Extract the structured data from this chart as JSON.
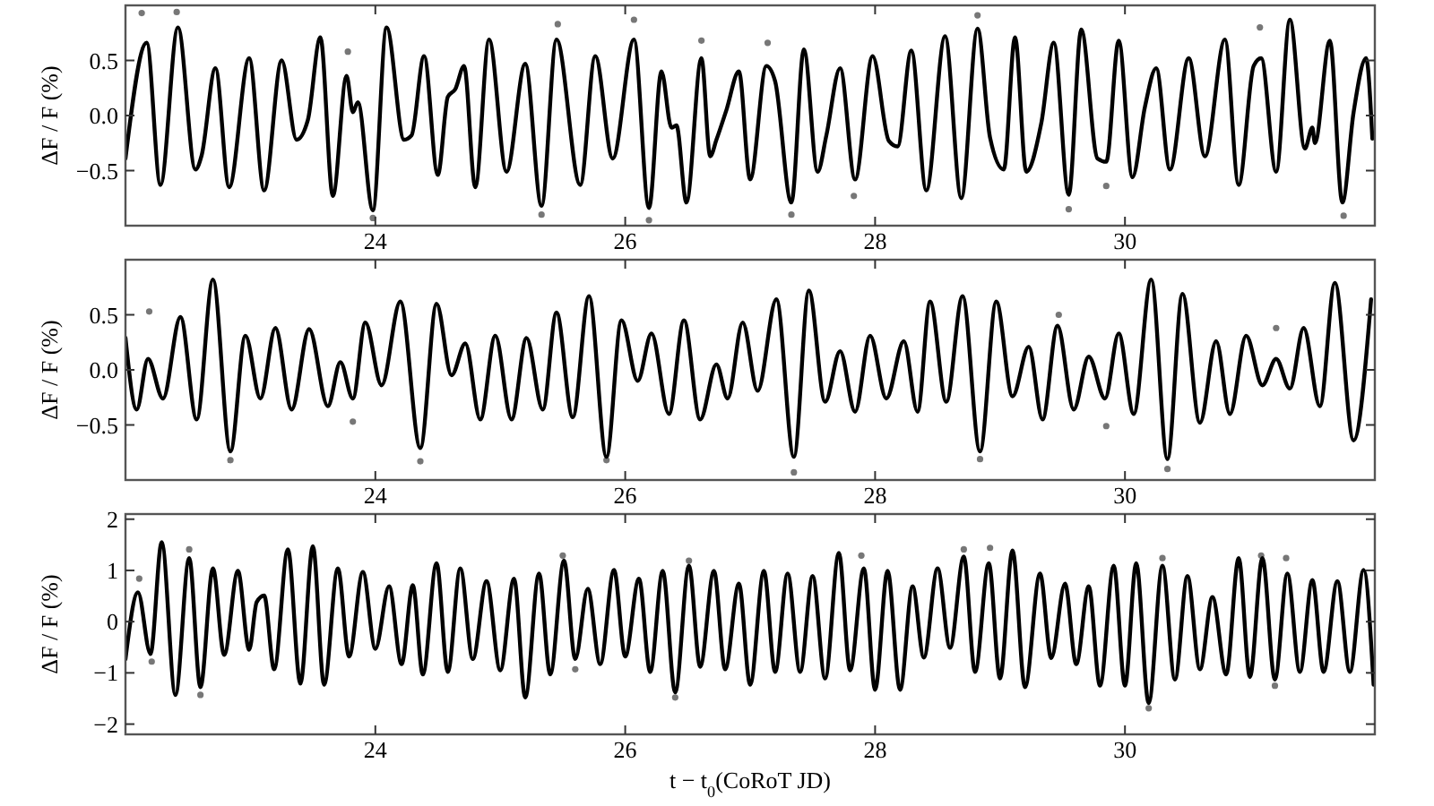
{
  "chart_data": [
    {
      "type": "line",
      "ylabel": "ΔF / F (%)",
      "xlim": [
        22,
        32
      ],
      "xticks": [
        24,
        26,
        28,
        30
      ],
      "ylim": [
        -1,
        1
      ],
      "yticks": [
        {
          "value": -0.5,
          "label": "−0.5"
        },
        {
          "value": 0,
          "label": "0.0"
        },
        0.5
      ],
      "grid": false,
      "series": [
        {
          "type": "scatter",
          "color": "#777777",
          "marker": "circle",
          "x": [
            22.13,
            22.41,
            23.78,
            23.98,
            25.33,
            25.46,
            26.07,
            26.19,
            26.61,
            27.14,
            27.33,
            27.83,
            28.82,
            29.55,
            29.85,
            31.08,
            31.75
          ],
          "values": [
            0.93,
            0.94,
            0.58,
            -0.93,
            -0.9,
            0.83,
            0.87,
            -0.95,
            0.68,
            0.66,
            -0.9,
            -0.73,
            0.91,
            -0.85,
            -0.64,
            0.8,
            -0.91
          ]
        },
        {
          "color": "#000000",
          "marker": "none",
          "line_style": "solid",
          "x": [
            22.0,
            22.17,
            22.28,
            22.42,
            22.56,
            22.61,
            22.72,
            22.83,
            22.99,
            23.11,
            23.25,
            23.37,
            23.46,
            23.56,
            23.66,
            23.77,
            23.82,
            23.86,
            23.98,
            24.09,
            24.23,
            24.29,
            24.39,
            24.5,
            24.58,
            24.64,
            24.71,
            24.8,
            24.91,
            25.05,
            25.2,
            25.33,
            25.45,
            25.64,
            25.76,
            25.9,
            26.07,
            26.19,
            26.29,
            26.37,
            26.41,
            26.49,
            26.61,
            26.68,
            26.73,
            26.81,
            26.91,
            27.0,
            27.13,
            27.2,
            27.33,
            27.43,
            27.54,
            27.61,
            27.72,
            27.84,
            27.98,
            28.11,
            28.18,
            28.29,
            28.41,
            28.56,
            28.69,
            28.82,
            28.92,
            29.03,
            29.12,
            29.21,
            29.33,
            29.43,
            29.55,
            29.65,
            29.78,
            29.85,
            29.95,
            30.06,
            30.16,
            30.25,
            30.36,
            30.51,
            30.64,
            30.8,
            30.91,
            31.03,
            31.09,
            31.21,
            31.32,
            31.44,
            31.5,
            31.52,
            31.64,
            31.74,
            31.83,
            31.93,
            31.98
          ],
          "values": [
            -0.39,
            0.66,
            -0.63,
            0.8,
            -0.49,
            -0.36,
            0.43,
            -0.65,
            0.52,
            -0.68,
            0.5,
            -0.22,
            -0.04,
            0.71,
            -0.73,
            0.36,
            0.03,
            0.12,
            -0.86,
            0.8,
            -0.22,
            -0.18,
            0.54,
            -0.54,
            0.17,
            0.24,
            0.45,
            -0.65,
            0.69,
            -0.51,
            0.47,
            -0.82,
            0.69,
            -0.63,
            0.54,
            -0.39,
            0.69,
            -0.84,
            0.4,
            -0.11,
            -0.09,
            -0.79,
            0.52,
            -0.37,
            -0.22,
            0.05,
            0.4,
            -0.58,
            0.45,
            0.31,
            -0.79,
            0.6,
            -0.51,
            -0.18,
            0.43,
            -0.58,
            0.54,
            -0.23,
            -0.28,
            0.59,
            -0.68,
            0.72,
            -0.75,
            0.79,
            -0.2,
            -0.49,
            0.71,
            -0.51,
            -0.07,
            0.66,
            -0.72,
            0.78,
            -0.39,
            -0.42,
            0.68,
            -0.56,
            0.08,
            0.43,
            -0.49,
            0.52,
            -0.37,
            0.69,
            -0.63,
            0.45,
            0.52,
            -0.51,
            0.87,
            -0.3,
            -0.11,
            -0.25,
            0.68,
            -0.79,
            0.03,
            0.52,
            -0.21
          ]
        }
      ]
    },
    {
      "type": "line",
      "ylabel": "ΔF / F (%)",
      "xlim": [
        22,
        32
      ],
      "xticks": [
        24,
        26,
        28,
        30
      ],
      "ylim": [
        -1,
        1
      ],
      "yticks": [
        {
          "value": -0.5,
          "label": "−0.5"
        },
        {
          "value": 0,
          "label": "0.0"
        },
        0.5
      ],
      "grid": false,
      "series": [
        {
          "type": "scatter",
          "color": "#777777",
          "marker": "circle",
          "x": [
            22.19,
            22.84,
            23.82,
            24.36,
            25.85,
            27.35,
            28.84,
            29.47,
            29.85,
            30.34,
            31.21
          ],
          "values": [
            0.53,
            -0.82,
            -0.47,
            -0.83,
            -0.82,
            -0.93,
            -0.81,
            0.5,
            -0.51,
            -0.9,
            0.38
          ]
        },
        {
          "color": "#000000",
          "marker": "none",
          "line_style": "solid",
          "x": [
            22.0,
            22.09,
            22.18,
            22.3,
            22.44,
            22.57,
            22.7,
            22.84,
            22.96,
            23.08,
            23.2,
            23.33,
            23.47,
            23.62,
            23.72,
            23.82,
            23.92,
            24.05,
            24.2,
            24.36,
            24.49,
            24.61,
            24.72,
            24.84,
            24.96,
            25.09,
            25.21,
            25.34,
            25.45,
            25.58,
            25.71,
            25.85,
            25.97,
            26.1,
            26.21,
            26.35,
            26.47,
            26.6,
            26.73,
            26.82,
            26.94,
            27.06,
            27.21,
            27.35,
            27.47,
            27.6,
            27.72,
            27.84,
            27.96,
            28.09,
            28.23,
            28.34,
            28.44,
            28.57,
            28.7,
            28.84,
            28.97,
            29.1,
            29.23,
            29.34,
            29.46,
            29.59,
            29.71,
            29.84,
            29.95,
            30.07,
            30.21,
            30.34,
            30.46,
            30.6,
            30.73,
            30.84,
            30.97,
            31.1,
            31.21,
            31.32,
            31.43,
            31.56,
            31.68,
            31.83,
            31.97
          ],
          "values": [
            0.29,
            -0.36,
            0.1,
            -0.26,
            0.48,
            -0.45,
            0.82,
            -0.74,
            0.31,
            -0.26,
            0.38,
            -0.36,
            0.37,
            -0.33,
            0.07,
            -0.26,
            0.43,
            -0.14,
            0.62,
            -0.71,
            0.6,
            -0.05,
            0.24,
            -0.45,
            0.31,
            -0.45,
            0.29,
            -0.36,
            0.52,
            -0.43,
            0.67,
            -0.79,
            0.45,
            -0.1,
            0.33,
            -0.4,
            0.45,
            -0.45,
            0.05,
            -0.26,
            0.43,
            -0.19,
            0.64,
            -0.79,
            0.72,
            -0.29,
            0.17,
            -0.38,
            0.31,
            -0.26,
            0.26,
            -0.38,
            0.62,
            -0.29,
            0.67,
            -0.74,
            0.62,
            -0.24,
            0.21,
            -0.45,
            0.4,
            -0.36,
            0.12,
            -0.26,
            0.33,
            -0.4,
            0.82,
            -0.81,
            0.69,
            -0.48,
            0.26,
            -0.4,
            0.31,
            -0.14,
            0.1,
            -0.17,
            0.38,
            -0.33,
            0.79,
            -0.64,
            0.64
          ]
        }
      ]
    },
    {
      "type": "line",
      "xlabel": "t − t$_{0}$(CoRoT JD)",
      "ylabel": "ΔF / F (%)",
      "xlim": [
        22,
        32
      ],
      "xticks": [
        24,
        26,
        28,
        30
      ],
      "ylim": [
        -2.2,
        2.1
      ],
      "yticks": [
        {
          "value": -2,
          "label": "−2"
        },
        {
          "value": -1,
          "label": "−1"
        },
        0,
        1,
        2
      ],
      "grid": false,
      "series": [
        {
          "type": "scatter",
          "color": "#777777",
          "marker": "circle",
          "x": [
            22.11,
            22.21,
            22.51,
            22.6,
            25.5,
            25.6,
            26.4,
            26.51,
            27.89,
            28.71,
            28.92,
            30.19,
            30.3,
            31.09,
            31.2,
            31.29
          ],
          "values": [
            0.84,
            -0.78,
            1.41,
            -1.43,
            1.29,
            -0.93,
            -1.48,
            1.19,
            1.29,
            1.41,
            1.44,
            -1.69,
            1.24,
            1.29,
            -1.25,
            1.24
          ]
        },
        {
          "color": "#000000",
          "marker": "none",
          "line_style": "solid",
          "x": [
            22.0,
            22.1,
            22.2,
            22.29,
            22.4,
            22.51,
            22.6,
            22.7,
            22.79,
            22.9,
            22.99,
            23.05,
            23.11,
            23.19,
            23.3,
            23.4,
            23.5,
            23.59,
            23.7,
            23.79,
            23.9,
            24.0,
            24.11,
            24.21,
            24.3,
            24.38,
            24.49,
            24.58,
            24.68,
            24.78,
            24.89,
            25.0,
            25.11,
            25.2,
            25.31,
            25.4,
            25.51,
            25.6,
            25.7,
            25.8,
            25.91,
            26.0,
            26.11,
            26.2,
            26.3,
            26.4,
            26.51,
            26.6,
            26.71,
            26.8,
            26.91,
            27.0,
            27.11,
            27.2,
            27.3,
            27.4,
            27.5,
            27.6,
            27.71,
            27.8,
            27.91,
            28.0,
            28.1,
            28.2,
            28.3,
            28.39,
            28.5,
            28.6,
            28.71,
            28.8,
            28.91,
            29.0,
            29.1,
            29.2,
            29.32,
            29.41,
            29.52,
            29.61,
            29.71,
            29.8,
            29.91,
            30.0,
            30.09,
            30.19,
            30.3,
            30.4,
            30.5,
            30.6,
            30.7,
            30.81,
            30.91,
            31.0,
            31.1,
            31.2,
            31.3,
            31.4,
            31.5,
            31.59,
            31.7,
            31.8,
            31.91,
            31.99
          ],
          "values": [
            -0.73,
            0.57,
            -0.63,
            1.55,
            -1.43,
            1.24,
            -1.28,
            1.04,
            -0.65,
            0.99,
            -0.55,
            0.38,
            0.51,
            -0.93,
            1.41,
            -1.21,
            1.47,
            -1.23,
            1.04,
            -0.68,
            0.97,
            -0.53,
            0.69,
            -0.83,
            0.71,
            -1.03,
            1.14,
            -0.98,
            1.04,
            -0.73,
            0.79,
            -0.95,
            0.84,
            -1.48,
            0.94,
            -1.03,
            1.19,
            -0.73,
            0.64,
            -0.83,
            1.01,
            -0.68,
            0.84,
            -0.98,
            0.99,
            -1.38,
            1.09,
            -0.88,
            0.99,
            -0.93,
            0.74,
            -1.23,
            0.99,
            -0.98,
            0.94,
            -0.98,
            0.89,
            -1.11,
            1.34,
            -0.95,
            1.04,
            -1.33,
            0.99,
            -1.33,
            0.69,
            -0.7,
            1.04,
            -0.51,
            1.27,
            -0.98,
            1.14,
            -1.11,
            1.39,
            -1.28,
            0.94,
            -0.71,
            0.74,
            -0.83,
            0.69,
            -1.25,
            1.09,
            -1.25,
            1.14,
            -1.59,
            1.09,
            -1.13,
            0.89,
            -0.93,
            0.48,
            -1.03,
            1.24,
            -1.08,
            1.24,
            -1.13,
            0.94,
            -0.98,
            0.81,
            -0.98,
            0.79,
            -0.98,
            1.01,
            -1.23
          ]
        }
      ]
    }
  ]
}
